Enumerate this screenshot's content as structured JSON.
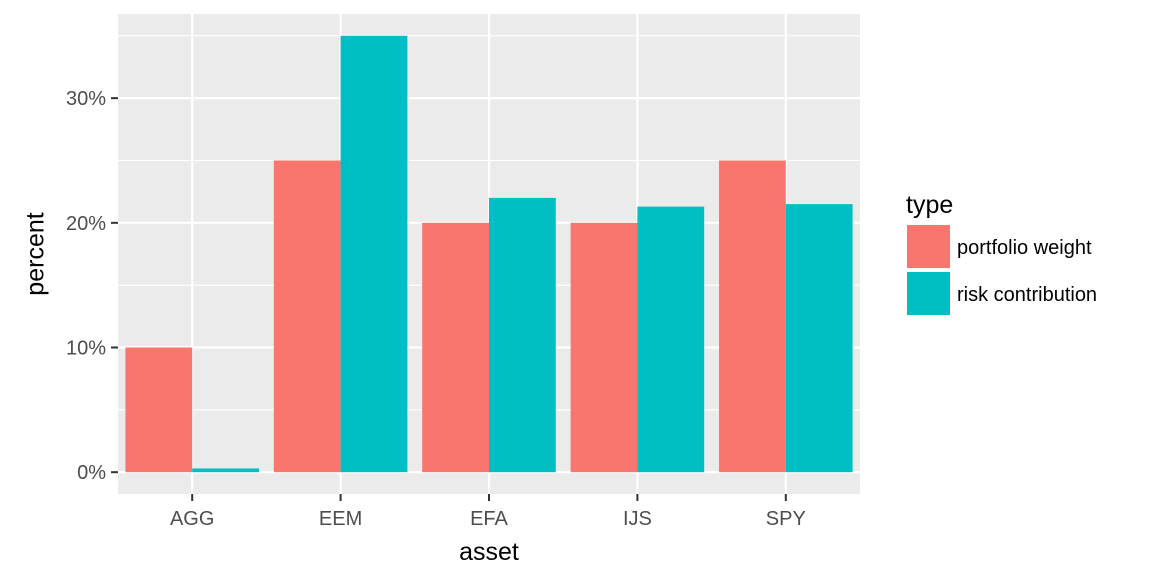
{
  "chart_data": {
    "type": "bar",
    "categories": [
      "AGG",
      "EEM",
      "EFA",
      "IJS",
      "SPY"
    ],
    "series": [
      {
        "name": "portfolio weight",
        "values": [
          10,
          25,
          20,
          20,
          25
        ],
        "color": "#F8766D"
      },
      {
        "name": "risk contribution",
        "values": [
          0.3,
          35,
          22,
          21.3,
          21.5
        ],
        "color": "#00BFC4"
      }
    ],
    "xlabel": "asset",
    "ylabel": "percent",
    "ylim": [
      -1.75,
      36.75
    ],
    "y_ticks": [
      0,
      10,
      20,
      30
    ],
    "y_tick_labels": [
      "0%",
      "10%",
      "20%",
      "30%"
    ],
    "grid": true,
    "legend": {
      "title": "type",
      "position": "right"
    },
    "colors": {
      "panel_bg": "#EBEBEB",
      "grid": "#FFFFFF"
    }
  }
}
